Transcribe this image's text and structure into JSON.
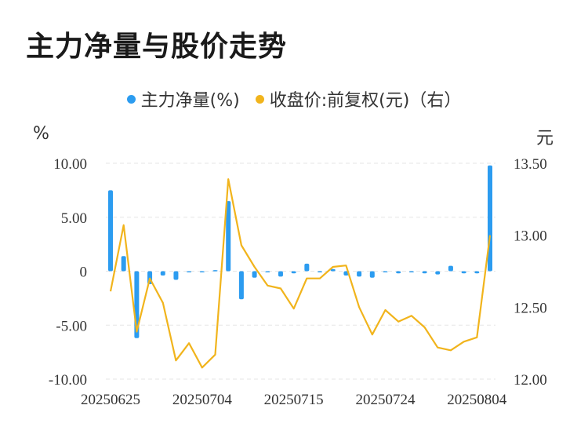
{
  "title": "主力净量与股价走势",
  "legend": [
    {
      "label": "主力净量(%)",
      "color": "#2c9cf0"
    },
    {
      "label": "收盘价:前复权(元)（右）",
      "color": "#f1b41c"
    }
  ],
  "left_unit": "%",
  "right_unit": "元",
  "chart_data": {
    "type": "bar+line",
    "categories": [
      "20250625",
      "20250626",
      "20250627",
      "20250630",
      "20250701",
      "20250702",
      "20250703",
      "20250704",
      "20250707",
      "20250708",
      "20250709",
      "20250710",
      "20250711",
      "20250714",
      "20250715",
      "20250716",
      "20250717",
      "20250718",
      "20250721",
      "20250722",
      "20250723",
      "20250724",
      "20250725",
      "20250728",
      "20250729",
      "20250730",
      "20250731",
      "20250801",
      "20250804",
      "20250805"
    ],
    "x_tick_labels": [
      "20250625",
      "20250704",
      "20250715",
      "20250724",
      "20250804"
    ],
    "left_axis": {
      "ylim": [
        -10,
        10
      ],
      "ticks": [
        "10.00",
        "5.00",
        "0",
        "-5.00",
        "-10.00"
      ],
      "tick_values": [
        10,
        5,
        0,
        -5,
        -10
      ]
    },
    "right_axis": {
      "ylim": [
        12.0,
        13.5
      ],
      "ticks": [
        "13.50",
        "13.00",
        "12.50",
        "12.00"
      ],
      "tick_values": [
        13.5,
        13.0,
        12.5,
        12.0
      ]
    },
    "series": [
      {
        "name": "主力净量(%)",
        "type": "bar",
        "axis": "left",
        "color": "#2c9cf0",
        "values": [
          7.5,
          1.4,
          -6.2,
          -1.2,
          -0.4,
          -0.8,
          -0.1,
          -0.05,
          0.1,
          6.5,
          -2.6,
          -0.6,
          -0.1,
          -0.5,
          -0.2,
          0.7,
          -0.1,
          0.2,
          -0.4,
          -0.5,
          -0.6,
          -0.1,
          -0.2,
          -0.1,
          -0.2,
          -0.3,
          0.5,
          -0.2,
          -0.2,
          9.8
        ]
      },
      {
        "name": "收盘价:前复权(元)（右）",
        "type": "line",
        "axis": "right",
        "color": "#f1b41c",
        "values": [
          12.61,
          13.07,
          12.33,
          12.7,
          12.53,
          12.13,
          12.25,
          12.08,
          12.17,
          13.39,
          12.93,
          12.78,
          12.65,
          12.63,
          12.49,
          12.7,
          12.7,
          12.78,
          12.79,
          12.5,
          12.31,
          12.48,
          12.4,
          12.44,
          12.36,
          12.22,
          12.2,
          12.26,
          12.29,
          13.0
        ]
      }
    ],
    "grid": true
  }
}
